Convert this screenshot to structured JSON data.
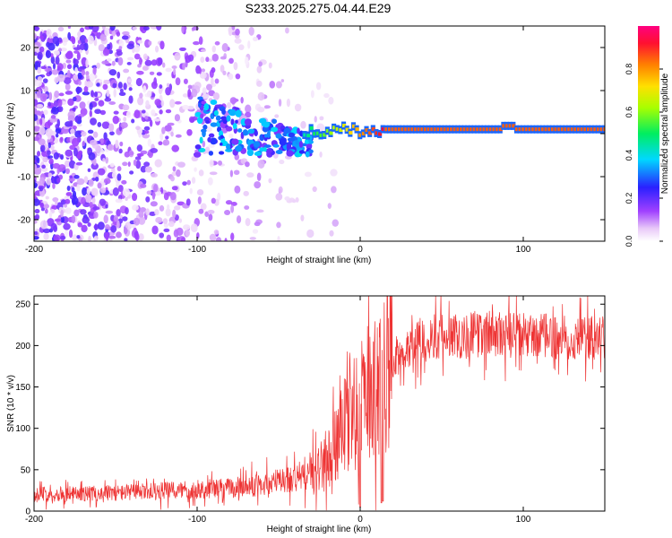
{
  "title": "S233.2025.275.04.44.E29",
  "colors": {
    "snr_line": "#ee3333",
    "axis": "#000000",
    "background": "#ffffff"
  },
  "chart_data": [
    {
      "type": "heatmap",
      "xlabel": "Height of straight line (km)",
      "ylabel": "Frequency (Hz)",
      "xlim": [
        -200,
        150
      ],
      "ylim": [
        -25,
        25
      ],
      "xticks": [
        -200,
        -100,
        0,
        100
      ],
      "yticks": [
        -20,
        -10,
        0,
        10,
        20
      ],
      "colorbar": {
        "label": "Normalized spectral amplitude",
        "range": [
          0,
          1
        ],
        "ticks": [
          0.0,
          0.2,
          0.4,
          0.6,
          0.8
        ],
        "colormap": "rainbow (violet-blue-cyan-green-yellow-orange-red-magenta)"
      },
      "features": {
        "noise_region_x": [
          -200,
          -35
        ],
        "carrier_start_x": -35,
        "carrier_frequency_hz": 1,
        "carrier_amplitude": 0.85,
        "noise_amplitude_range": [
          0.0,
          0.2
        ]
      }
    },
    {
      "type": "line",
      "xlabel": "Height of straight line (km)",
      "ylabel": "SNR (10 * v/v)",
      "xlim": [
        -200,
        150
      ],
      "ylim": [
        0,
        260
      ],
      "xticks": [
        -200,
        -100,
        0,
        100
      ],
      "yticks": [
        0,
        50,
        100,
        150,
        200,
        250
      ],
      "series": [
        {
          "name": "SNR",
          "x": [
            -200,
            -150,
            -100,
            -80,
            -60,
            -40,
            -30,
            -25,
            -20,
            -15,
            -10,
            -5,
            0,
            5,
            10,
            15,
            20,
            30,
            40,
            60,
            80,
            100,
            120,
            150
          ],
          "values": [
            20,
            22,
            26,
            28,
            32,
            40,
            45,
            50,
            60,
            80,
            100,
            130,
            110,
            135,
            150,
            170,
            185,
            200,
            210,
            212,
            215,
            212,
            210,
            208
          ]
        }
      ],
      "dropouts": [
        {
          "x": 0,
          "value": 5
        },
        {
          "x": 13,
          "value": 10
        },
        {
          "x": 14,
          "value": 12
        }
      ]
    }
  ]
}
